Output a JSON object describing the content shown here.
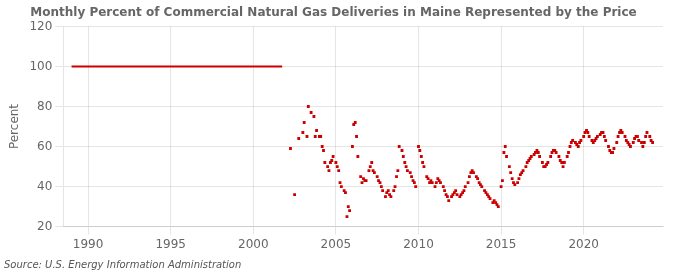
{
  "chart_data": {
    "type": "scatter",
    "title": "Monthly Percent of Commercial Natural Gas Deliveries in Maine Represented by the Price",
    "ylabel": "Percent",
    "source": "Source: U.S. Energy Information Administration",
    "xlim": [
      1988.5,
      2024.8
    ],
    "ylim": [
      20,
      120
    ],
    "xticks": [
      1990,
      1995,
      2000,
      2005,
      2010,
      2015,
      2020
    ],
    "yticks": [
      20,
      40,
      60,
      80,
      100,
      120
    ],
    "grid": true,
    "series": [
      {
        "type": "line",
        "color": "#CC0000",
        "line_style": "solid",
        "x": [
          1989.0,
          2001.75
        ],
        "values": [
          100,
          100
        ]
      },
      {
        "type": "scatter",
        "color": "#CC0000",
        "marker": "square",
        "x": [
          2002.25,
          2002.5,
          2002.75,
          2003.0,
          2003.08,
          2003.25,
          2003.33,
          2003.5,
          2003.67,
          2003.75,
          2003.83,
          2004.0,
          2004.08,
          2004.17,
          2004.25,
          2004.33,
          2004.5,
          2004.58,
          2004.67,
          2004.75,
          2004.83,
          2005.0,
          2005.08,
          2005.17,
          2005.25,
          2005.33,
          2005.5,
          2005.58,
          2005.67,
          2005.75,
          2005.83,
          2006.0,
          2006.08,
          2006.17,
          2006.25,
          2006.33,
          2006.5,
          2006.58,
          2006.67,
          2006.75,
          2006.83,
          2007.0,
          2007.08,
          2007.17,
          2007.25,
          2007.33,
          2007.5,
          2007.58,
          2007.67,
          2007.75,
          2007.83,
          2008.0,
          2008.08,
          2008.17,
          2008.25,
          2008.33,
          2008.5,
          2008.58,
          2008.67,
          2008.75,
          2008.83,
          2009.0,
          2009.08,
          2009.17,
          2009.25,
          2009.33,
          2009.5,
          2009.58,
          2009.67,
          2009.75,
          2009.83,
          2010.0,
          2010.08,
          2010.17,
          2010.25,
          2010.33,
          2010.5,
          2010.58,
          2010.67,
          2010.75,
          2010.83,
          2011.0,
          2011.08,
          2011.17,
          2011.25,
          2011.33,
          2011.5,
          2011.58,
          2011.67,
          2011.75,
          2011.83,
          2012.0,
          2012.08,
          2012.17,
          2012.25,
          2012.33,
          2012.5,
          2012.58,
          2012.67,
          2012.75,
          2012.83,
          2013.0,
          2013.08,
          2013.17,
          2013.25,
          2013.33,
          2013.5,
          2013.58,
          2013.67,
          2013.75,
          2013.83,
          2014.0,
          2014.08,
          2014.17,
          2014.25,
          2014.33,
          2014.5,
          2014.58,
          2014.67,
          2014.75,
          2014.83,
          2015.0,
          2015.08,
          2015.17,
          2015.25,
          2015.33,
          2015.5,
          2015.58,
          2015.67,
          2015.75,
          2015.83,
          2016.0,
          2016.08,
          2016.17,
          2016.25,
          2016.33,
          2016.5,
          2016.58,
          2016.67,
          2016.75,
          2016.83,
          2017.0,
          2017.08,
          2017.17,
          2017.25,
          2017.33,
          2017.5,
          2017.58,
          2017.67,
          2017.75,
          2017.83,
          2018.0,
          2018.08,
          2018.17,
          2018.25,
          2018.33,
          2018.5,
          2018.58,
          2018.67,
          2018.75,
          2018.83,
          2019.0,
          2019.08,
          2019.17,
          2019.25,
          2019.33,
          2019.5,
          2019.58,
          2019.67,
          2019.75,
          2019.83,
          2020.0,
          2020.08,
          2020.17,
          2020.25,
          2020.33,
          2020.5,
          2020.58,
          2020.67,
          2020.75,
          2020.83,
          2021.0,
          2021.08,
          2021.17,
          2021.25,
          2021.33,
          2021.5,
          2021.58,
          2021.67,
          2021.75,
          2021.83,
          2022.0,
          2022.08,
          2022.17,
          2022.25,
          2022.33,
          2022.5,
          2022.58,
          2022.67,
          2022.75,
          2022.83,
          2023.0,
          2023.08,
          2023.17,
          2023.25,
          2023.33,
          2023.5,
          2023.58,
          2023.67,
          2023.75,
          2023.83,
          2024.0,
          2024.08,
          2024.17
        ],
        "values": [
          59.0,
          36.0,
          64.0,
          67.0,
          72.0,
          65.0,
          80.0,
          77.0,
          75.0,
          65.0,
          68.0,
          65.0,
          65.0,
          60.0,
          58.0,
          52.0,
          50.0,
          48.0,
          52.0,
          53.0,
          55.0,
          52.0,
          50.0,
          48.0,
          42.0,
          40.0,
          38.0,
          37.0,
          25.0,
          30.0,
          28.0,
          60.0,
          71.0,
          72.0,
          65.0,
          55.0,
          45.0,
          42.0,
          44.0,
          43.0,
          43.0,
          48.0,
          50.0,
          52.0,
          48.0,
          47.0,
          45.0,
          43.0,
          42.0,
          40.0,
          38.0,
          35.0,
          37.0,
          38.0,
          36.0,
          35.0,
          38.0,
          40.0,
          45.0,
          48.0,
          60.0,
          58.0,
          55.0,
          52.0,
          50.0,
          48.0,
          47.0,
          45.0,
          43.0,
          42.0,
          40.0,
          60.0,
          58.0,
          55.0,
          52.0,
          50.0,
          45.0,
          44.0,
          42.0,
          43.0,
          42.0,
          40.0,
          42.0,
          44.0,
          43.0,
          42.0,
          40.0,
          38.0,
          36.0,
          35.0,
          33.0,
          35.0,
          36.0,
          37.0,
          38.0,
          36.0,
          35.0,
          36.0,
          37.0,
          38.0,
          40.0,
          42.0,
          45.0,
          47.0,
          48.0,
          47.0,
          45.0,
          44.0,
          42.0,
          41.0,
          40.0,
          38.0,
          37.0,
          36.0,
          35.0,
          34.0,
          32.0,
          33.0,
          32.0,
          31.0,
          30.0,
          40.0,
          43.0,
          57.0,
          60.0,
          55.0,
          50.0,
          47.0,
          44.0,
          42.0,
          41.0,
          42.0,
          44.0,
          46.0,
          47.0,
          48.0,
          50.0,
          52.0,
          53.0,
          54.0,
          55.0,
          56.0,
          57.0,
          58.0,
          57.0,
          55.0,
          52.0,
          50.0,
          50.0,
          51.0,
          52.0,
          55.0,
          57.0,
          58.0,
          58.0,
          57.0,
          55.0,
          53.0,
          52.0,
          50.0,
          52.0,
          55.0,
          57.0,
          60.0,
          62.0,
          63.0,
          62.0,
          61.0,
          60.0,
          62.0,
          63.0,
          65.0,
          67.0,
          68.0,
          67.0,
          65.0,
          63.0,
          62.0,
          63.0,
          64.0,
          65.0,
          66.0,
          67.0,
          67.0,
          65.0,
          63.0,
          60.0,
          58.0,
          57.0,
          57.0,
          59.0,
          62.0,
          65.0,
          67.0,
          68.0,
          67.0,
          65.0,
          63.0,
          62.0,
          61.0,
          60.0,
          62.0,
          64.0,
          65.0,
          65.0,
          63.0,
          62.0,
          60.0,
          62.0,
          65.0,
          67.0,
          65.0,
          63.0,
          62.0
        ]
      }
    ]
  }
}
